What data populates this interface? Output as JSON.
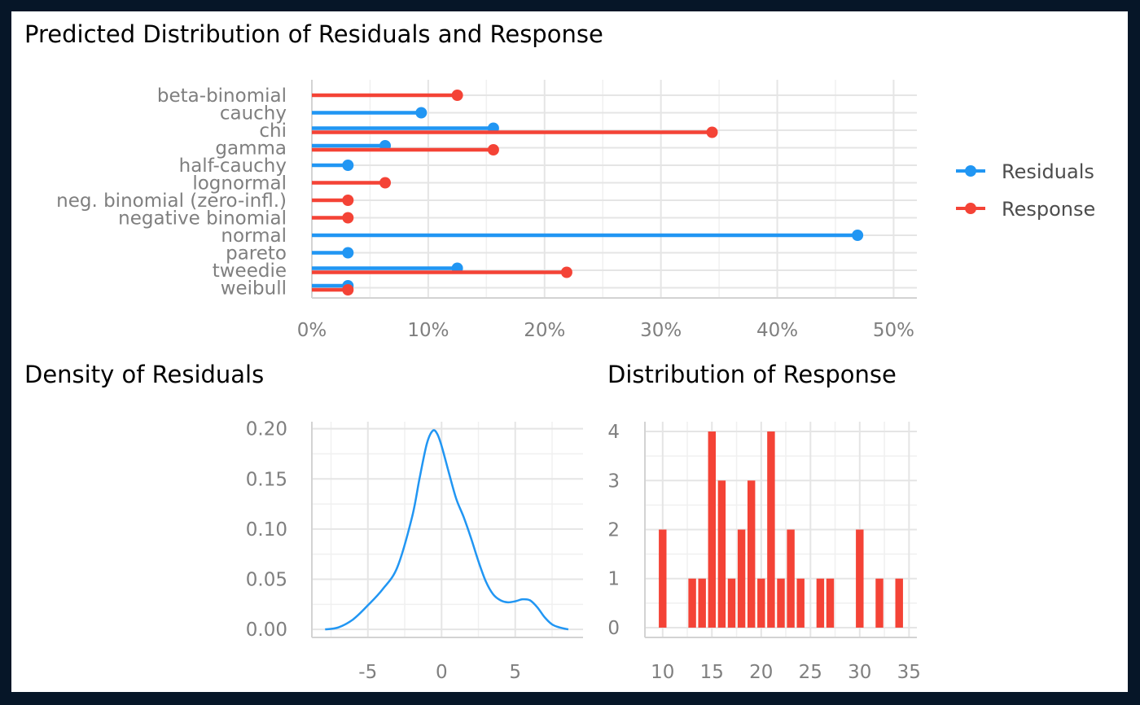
{
  "colors": {
    "residuals": "#2196F3",
    "response": "#F44336",
    "grid_major": "#E5E5E5",
    "grid_minor": "#F0F0F0",
    "axis": "#D3D3D3",
    "tick_text": "#7F7F7F",
    "frame": "#061628",
    "panel": "#FFFFFF"
  },
  "chart_data": [
    {
      "type": "lollipop",
      "title": "Predicted Distribution of Residuals and Response",
      "categories": [
        "beta-binomial",
        "cauchy",
        "chi",
        "gamma",
        "half-cauchy",
        "lognormal",
        "neg. binomial (zero-infl.)",
        "negative binomial",
        "normal",
        "pareto",
        "tweedie",
        "weibull"
      ],
      "series": [
        {
          "name": "Residuals",
          "values": [
            null,
            9.4,
            15.6,
            6.3,
            3.1,
            null,
            null,
            null,
            46.9,
            3.1,
            12.5,
            3.1
          ]
        },
        {
          "name": "Response",
          "values": [
            12.5,
            null,
            34.4,
            15.6,
            null,
            6.3,
            3.1,
            3.1,
            null,
            null,
            21.9,
            3.1
          ]
        }
      ],
      "xlim": [
        0,
        52
      ],
      "x_ticks": [
        0,
        10,
        20,
        30,
        40,
        50
      ],
      "x_tick_labels": [
        "0%",
        "10%",
        "20%",
        "30%",
        "40%",
        "50%"
      ],
      "grid": true,
      "legend": "right",
      "legend_items": [
        "Residuals",
        "Response"
      ]
    },
    {
      "type": "line",
      "title": "Density of Residuals",
      "x": [
        -7.9,
        -7.0,
        -6.0,
        -5.0,
        -4.0,
        -3.0,
        -2.0,
        -1.5,
        -1.0,
        -0.6,
        -0.3,
        0.0,
        0.5,
        1.0,
        1.5,
        2.0,
        2.5,
        3.0,
        3.5,
        4.0,
        4.5,
        5.0,
        5.5,
        6.0,
        6.5,
        7.0,
        7.5,
        8.0,
        8.6
      ],
      "y": [
        0.0,
        0.002,
        0.01,
        0.024,
        0.04,
        0.062,
        0.112,
        0.15,
        0.185,
        0.198,
        0.195,
        0.183,
        0.156,
        0.13,
        0.112,
        0.091,
        0.068,
        0.048,
        0.035,
        0.029,
        0.027,
        0.028,
        0.03,
        0.029,
        0.022,
        0.012,
        0.005,
        0.002,
        0.0
      ],
      "xlim": [
        -8.8,
        9.6
      ],
      "ylim": [
        -0.008,
        0.207
      ],
      "x_ticks": [
        -5,
        0,
        5
      ],
      "x_tick_labels": [
        "-5",
        "0",
        "5"
      ],
      "y_ticks": [
        0,
        0.05,
        0.1,
        0.15,
        0.2
      ],
      "y_tick_labels": [
        "0.00",
        "0.05",
        "0.10",
        "0.15",
        "0.20"
      ],
      "grid": true
    },
    {
      "type": "bar",
      "title": "Distribution of Response",
      "categories": [
        10,
        13,
        14,
        15,
        16,
        17,
        18,
        19,
        20,
        21,
        22,
        23,
        24,
        26,
        27,
        30,
        32,
        34
      ],
      "values": [
        2,
        1,
        1,
        4,
        3,
        1,
        2,
        3,
        1,
        4,
        1,
        2,
        1,
        1,
        1,
        2,
        1,
        1
      ],
      "xlim": [
        8.2,
        35.8
      ],
      "ylim": [
        -0.2,
        4.2
      ],
      "x_ticks": [
        10,
        15,
        20,
        25,
        30,
        35
      ],
      "x_tick_labels": [
        "10",
        "15",
        "20",
        "25",
        "30",
        "35"
      ],
      "y_ticks": [
        0,
        1,
        2,
        3,
        4
      ],
      "y_tick_labels": [
        "0",
        "1",
        "2",
        "3",
        "4"
      ],
      "grid": true
    }
  ]
}
